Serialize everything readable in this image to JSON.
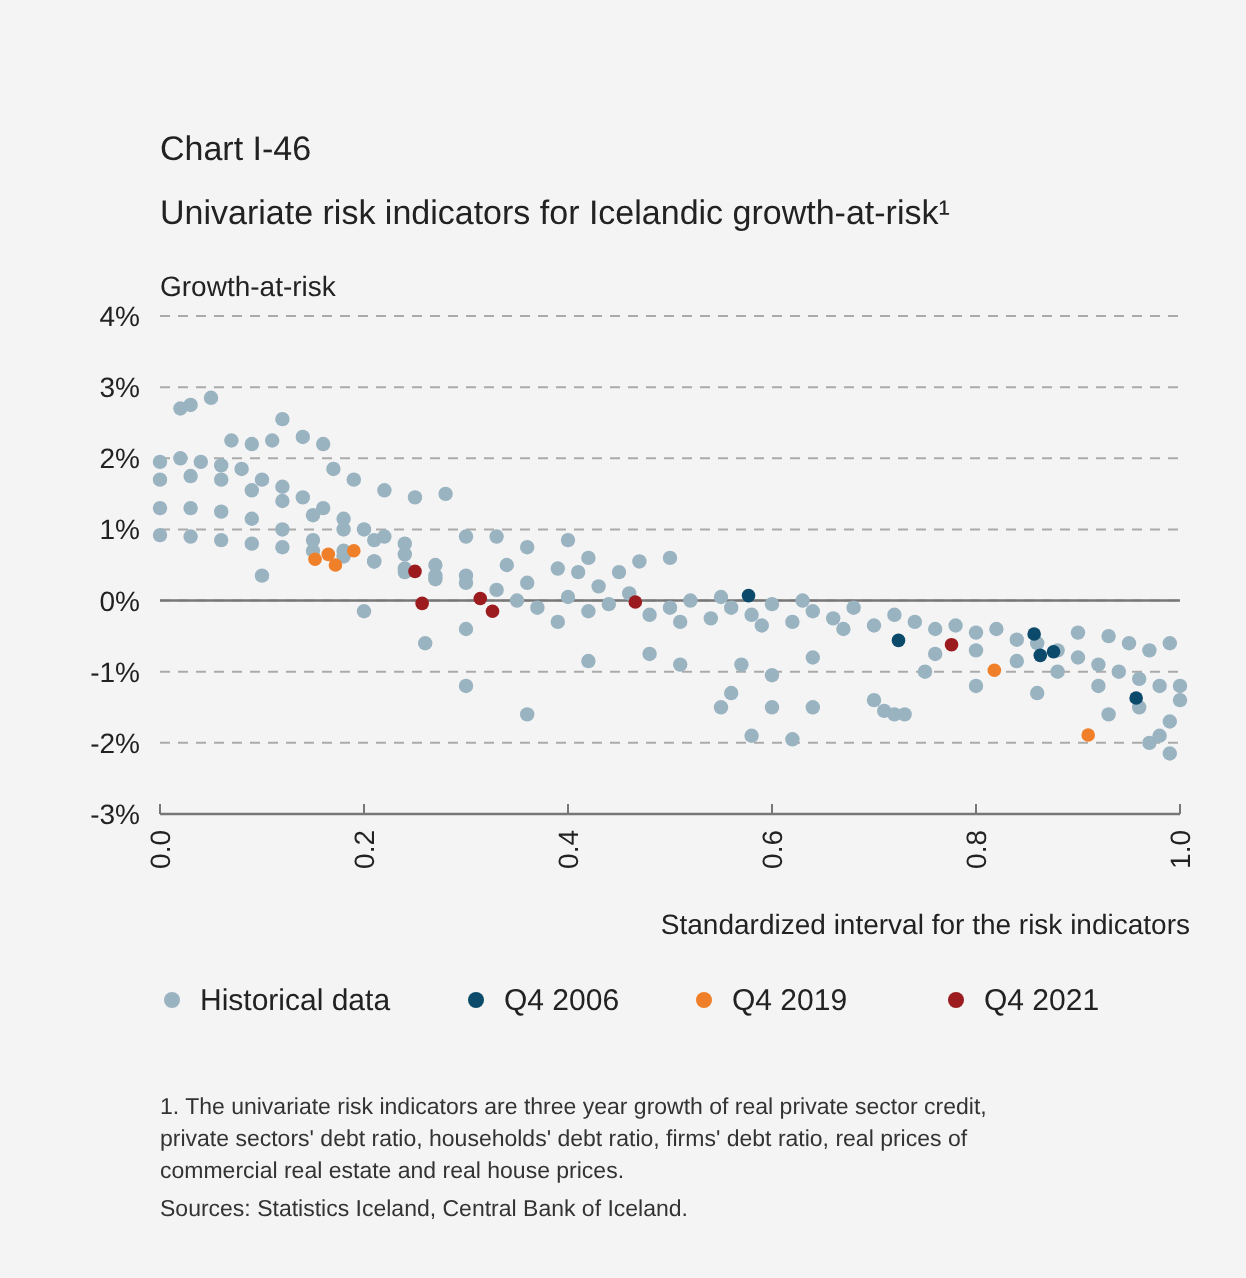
{
  "chart_data": {
    "type": "scatter",
    "title": "Chart I-46",
    "subtitle": "Univariate risk indicators for Icelandic growth-at-risk¹",
    "ylabel": "Growth-at-risk",
    "xlabel": "Standardized interval for the risk indicators",
    "xlim": [
      0,
      1
    ],
    "xticks": [
      {
        "value": 0,
        "label": "0.0"
      },
      {
        "value": 0.2,
        "label": "0.2"
      },
      {
        "value": 0.4,
        "label": "0.4"
      },
      {
        "value": 0.6,
        "label": "0.6"
      },
      {
        "value": 0.8,
        "label": "0.8"
      },
      {
        "value": 1,
        "label": "1.0"
      }
    ],
    "ylim": [
      -3,
      4
    ],
    "yticks": [
      {
        "value": -3,
        "label": "-3%"
      },
      {
        "value": -2,
        "label": "-2%"
      },
      {
        "value": -1,
        "label": "-1%"
      },
      {
        "value": 0,
        "label": "0%"
      },
      {
        "value": 1,
        "label": "1%"
      },
      {
        "value": 2,
        "label": "2%"
      },
      {
        "value": 3,
        "label": "3%"
      },
      {
        "value": 4,
        "label": "4%"
      }
    ],
    "grid": "y",
    "legend": "bottom",
    "marker": "circle",
    "ref_lines": [
      {
        "axis": "y",
        "value": 0,
        "color": "#777777"
      }
    ],
    "series": [
      {
        "name": "Historical data",
        "color": "#9ab3c1",
        "x": [
          0,
          0.02,
          0.04,
          0.06,
          0.08,
          0.1,
          0.12,
          0.14,
          0.16,
          0.18,
          0.2,
          0.22,
          0.24,
          0,
          0.03,
          0.06,
          0.09,
          0.12,
          0.15,
          0.18,
          0.21,
          0.24,
          0.27,
          0.3,
          0,
          0.03,
          0.06,
          0.09,
          0.12,
          0.15,
          0.18,
          0.21,
          0.24,
          0.27,
          0,
          0.03,
          0.06,
          0.09,
          0.12,
          0.15,
          0.18,
          0.21,
          0.24,
          0.27,
          0.3,
          0.02,
          0.03,
          0.05,
          0.07,
          0.09,
          0.11,
          0.14,
          0.16,
          0.12,
          0.17,
          0.19,
          0.22,
          0.25,
          0.28,
          0.3,
          0.33,
          0.36,
          0.4,
          0.42,
          0.45,
          0.47,
          0.1,
          0.2,
          0.26,
          0.36,
          0.3,
          0.3,
          0.33,
          0.35,
          0.37,
          0.4,
          0.42,
          0.44,
          0.46,
          0.48,
          0.5,
          0.52,
          0.54,
          0.56,
          0.58,
          0.6,
          0.62,
          0.64,
          0.66,
          0.68,
          0.7,
          0.72,
          0.36,
          0.39,
          0.43,
          0.51,
          0.55,
          0.59,
          0.63,
          0.67,
          0.42,
          0.48,
          0.51,
          0.57,
          0.6,
          0.64,
          0.34,
          0.39,
          0.41,
          0.5,
          0.55,
          0.6,
          0.64,
          0.58,
          0.62,
          0.56,
          0.72,
          0.71,
          0.75,
          0.7,
          0.73,
          0.74,
          0.76,
          0.78,
          0.8,
          0.82,
          0.84,
          0.86,
          0.88,
          0.9,
          0.92,
          0.94,
          0.96,
          0.98,
          1,
          0.95,
          0.97,
          0.99,
          0.93,
          0.9,
          0.8,
          0.84,
          0.88,
          0.92,
          0.96,
          0.99,
          0.93,
          0.97,
          0.99,
          0.86,
          0.8,
          0.76,
          0.98,
          1
        ],
        "values": [
          1.95,
          2,
          1.95,
          1.9,
          1.85,
          1.7,
          1.6,
          1.45,
          1.3,
          1.15,
          1,
          0.9,
          0.8,
          1.7,
          1.75,
          1.7,
          1.55,
          1.4,
          1.2,
          1,
          0.85,
          0.65,
          0.5,
          0.35,
          1.3,
          1.3,
          1.25,
          1.15,
          1,
          0.85,
          0.7,
          0.55,
          0.4,
          0.3,
          0.92,
          0.9,
          0.85,
          0.8,
          0.75,
          0.7,
          0.62,
          0.55,
          0.45,
          0.35,
          0.25,
          2.7,
          2.75,
          2.85,
          2.25,
          2.2,
          2.25,
          2.3,
          2.2,
          2.55,
          1.85,
          1.7,
          1.55,
          1.45,
          1.5,
          0.9,
          0.9,
          0.75,
          0.85,
          0.6,
          0.4,
          0.55,
          0.35,
          -0.15,
          -0.6,
          -1.6,
          -1.2,
          -0.4,
          0.15,
          0,
          -0.1,
          0.05,
          -0.15,
          -0.05,
          0.1,
          -0.2,
          -0.1,
          0,
          -0.25,
          -0.1,
          -0.2,
          -0.05,
          -0.3,
          -0.15,
          -0.25,
          -0.1,
          -0.35,
          -0.2,
          0.25,
          -0.3,
          0.2,
          -0.3,
          0.05,
          -0.35,
          0,
          -0.4,
          -0.85,
          -0.75,
          -0.9,
          -0.9,
          -1.05,
          -0.8,
          0.5,
          0.45,
          0.4,
          0.6,
          -1.5,
          -1.5,
          -1.5,
          -1.9,
          -1.95,
          -1.3,
          -1.6,
          -1.55,
          -1,
          -1.4,
          -1.6,
          -0.3,
          -0.4,
          -0.35,
          -0.45,
          -0.4,
          -0.55,
          -0.6,
          -0.7,
          -0.8,
          -0.9,
          -1,
          -1.1,
          -1.2,
          -1.4,
          -0.6,
          -0.7,
          -0.6,
          -0.5,
          -0.45,
          -0.7,
          -0.85,
          -1,
          -1.2,
          -1.5,
          -1.7,
          -1.6,
          -2,
          -2.15,
          -1.3,
          -1.2,
          -0.75,
          -1.9,
          -1.2
        ]
      },
      {
        "name": "Q4 2006",
        "color": "#0b4a6a",
        "x": [
          0.577,
          0.724,
          0.857,
          0.863,
          0.876,
          0.957
        ],
        "values": [
          0.07,
          -0.56,
          -0.47,
          -0.77,
          -0.72,
          -1.37
        ]
      },
      {
        "name": "Q4 2019",
        "color": "#f07f2a",
        "x": [
          0.152,
          0.165,
          0.172,
          0.19,
          0.818,
          0.91
        ],
        "values": [
          0.58,
          0.65,
          0.5,
          0.7,
          -0.98,
          -1.89
        ]
      },
      {
        "name": "Q4 2021",
        "color": "#9b1b1f",
        "x": [
          0.25,
          0.257,
          0.314,
          0.326,
          0.466,
          0.776
        ],
        "values": [
          0.41,
          -0.04,
          0.03,
          -0.15,
          -0.02,
          -0.62
        ]
      }
    ],
    "annotations": [
      "1. The univariate risk indicators are three year growth of real private sector credit, private sectors' debt ratio, households' debt ratio, firms' debt ratio, real prices of commercial real estate and real house prices.",
      "Sources: Statistics Iceland, Central Bank of Iceland."
    ]
  }
}
